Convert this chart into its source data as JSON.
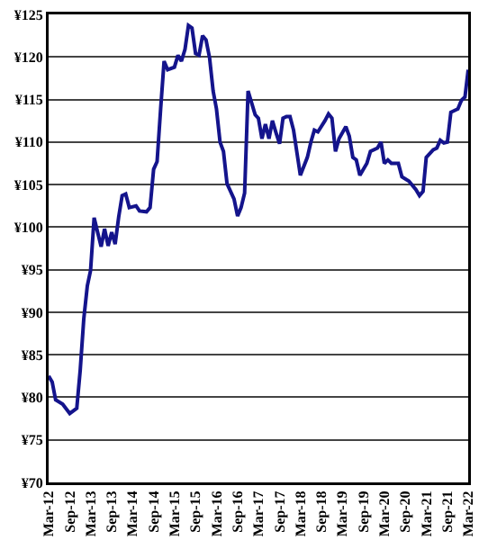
{
  "chart_data": {
    "type": "line",
    "x": [
      "2012-03",
      "2012-04",
      "2012-05",
      "2012-07",
      "2012-09",
      "2012-11",
      "2012-12",
      "2013-01",
      "2013-02",
      "2013-03",
      "2013-04",
      "2013-06",
      "2013-07",
      "2013-08",
      "2013-09",
      "2013-10",
      "2013-11",
      "2013-12",
      "2014-01",
      "2014-02",
      "2014-04",
      "2014-05",
      "2014-07",
      "2014-08",
      "2014-09",
      "2014-10",
      "2014-11",
      "2014-12",
      "2015-01",
      "2015-03",
      "2015-04",
      "2015-05",
      "2015-06",
      "2015-07",
      "2015-08",
      "2015-09",
      "2015-10",
      "2015-11",
      "2015-12",
      "2016-01",
      "2016-02",
      "2016-03",
      "2016-04",
      "2016-05",
      "2016-06",
      "2016-08",
      "2016-09",
      "2016-10",
      "2016-11",
      "2016-12",
      "2017-01",
      "2017-02",
      "2017-03",
      "2017-04",
      "2017-05",
      "2017-06",
      "2017-07",
      "2017-08",
      "2017-09",
      "2017-10",
      "2017-11",
      "2017-12",
      "2018-01",
      "2018-02",
      "2018-03",
      "2018-05",
      "2018-06",
      "2018-07",
      "2018-08",
      "2018-10",
      "2018-11",
      "2018-12",
      "2019-01",
      "2019-02",
      "2019-04",
      "2019-05",
      "2019-06",
      "2019-07",
      "2019-08",
      "2019-10",
      "2019-11",
      "2020-01",
      "2020-02",
      "2020-03",
      "2020-04",
      "2020-05",
      "2020-07",
      "2020-08",
      "2020-10",
      "2020-12",
      "2021-01",
      "2021-02",
      "2021-03",
      "2021-05",
      "2021-06",
      "2021-07",
      "2021-08",
      "2021-09",
      "2021-10",
      "2021-12",
      "2022-01",
      "2022-02",
      "2022-03"
    ],
    "series": [
      {
        "color": "#14148c",
        "values": [
          82.5,
          81.8,
          79.7,
          79.2,
          78.1,
          78.7,
          83.2,
          89.2,
          93.1,
          94.9,
          101.1,
          97.7,
          99.8,
          97.8,
          99.4,
          98,
          101.2,
          103.7,
          103.9,
          102.3,
          102.5,
          101.9,
          101.8,
          102.3,
          106.8,
          107.7,
          113.9,
          119.5,
          118.5,
          118.8,
          120.2,
          119.5,
          120.9,
          123.7,
          123.4,
          120.4,
          120.2,
          122.5,
          122,
          119.9,
          116,
          113.9,
          110,
          108.9,
          105.1,
          103.3,
          101.3,
          102.3,
          104,
          116,
          114.6,
          113.2,
          112.8,
          110.4,
          112.1,
          110.4,
          112.5,
          111.1,
          109.8,
          112.8,
          113,
          113,
          111.4,
          108.6,
          106.1,
          108.2,
          110,
          111.4,
          111.2,
          112.5,
          113.3,
          112.8,
          108.9,
          110.4,
          111.8,
          110.7,
          108.2,
          107.9,
          106.1,
          107.5,
          108.9,
          109.3,
          110,
          107.5,
          107.9,
          107.5,
          107.5,
          105.9,
          105.4,
          104.4,
          103.7,
          104.2,
          108.2,
          109.1,
          109.3,
          110.2,
          109.9,
          110,
          113.5,
          113.9,
          114.9,
          115.3,
          118.5
        ]
      }
    ],
    "xlim": [
      "2012-03",
      "2022-03"
    ],
    "xticks": [
      {
        "value": "2012-03",
        "label": "Mar-12"
      },
      {
        "value": "2012-09",
        "label": "Sep-12"
      },
      {
        "value": "2013-03",
        "label": "Mar-13"
      },
      {
        "value": "2013-09",
        "label": "Sep-13"
      },
      {
        "value": "2014-03",
        "label": "Mar-14"
      },
      {
        "value": "2014-09",
        "label": "Sep-14"
      },
      {
        "value": "2015-03",
        "label": "Mar-15"
      },
      {
        "value": "2015-09",
        "label": "Sep-15"
      },
      {
        "value": "2016-03",
        "label": "Mar-16"
      },
      {
        "value": "2016-09",
        "label": "Sep-16"
      },
      {
        "value": "2017-03",
        "label": "Mar-17"
      },
      {
        "value": "2017-09",
        "label": "Sep-17"
      },
      {
        "value": "2018-03",
        "label": "Mar-18"
      },
      {
        "value": "2018-09",
        "label": "Sep-18"
      },
      {
        "value": "2019-03",
        "label": "Mar-19"
      },
      {
        "value": "2019-09",
        "label": "Sep-19"
      },
      {
        "value": "2020-03",
        "label": "Mar-20"
      },
      {
        "value": "2020-09",
        "label": "Sep-20"
      },
      {
        "value": "2021-03",
        "label": "Mar-21"
      },
      {
        "value": "2021-09",
        "label": "Sep-21"
      },
      {
        "value": "2022-03",
        "label": "Mar-22"
      }
    ],
    "ylim": [
      70,
      125
    ],
    "yticks": [
      {
        "value": 70,
        "label": "¥70"
      },
      {
        "value": 75,
        "label": "¥75"
      },
      {
        "value": 80,
        "label": "¥80"
      },
      {
        "value": 85,
        "label": "¥85"
      },
      {
        "value": 90,
        "label": "¥90"
      },
      {
        "value": 95,
        "label": "¥95"
      },
      {
        "value": 100,
        "label": "¥100"
      },
      {
        "value": 105,
        "label": "¥105"
      },
      {
        "value": 110,
        "label": "¥110"
      },
      {
        "value": 115,
        "label": "¥115"
      },
      {
        "value": 120,
        "label": "¥120"
      },
      {
        "value": 125,
        "label": "¥125"
      }
    ],
    "grid": "y",
    "marker": "none",
    "line_style": "solid"
  }
}
